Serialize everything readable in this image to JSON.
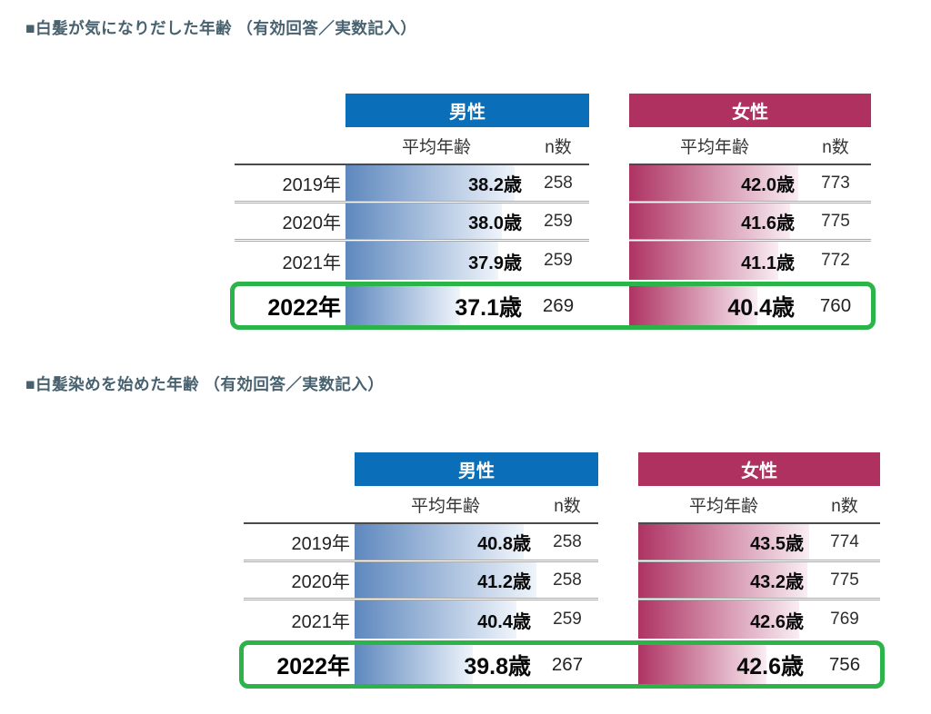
{
  "colors": {
    "heading_text": "#47616F",
    "male_header": "#0B6EB8",
    "female_header": "#AE3160",
    "male_bar_start": "#5E88BE",
    "male_bar_end": "#EFF4FB",
    "female_bar_start": "#AE3363",
    "female_bar_end": "#F9EDF3",
    "highlight_border": "#2CB34A",
    "rule": "#4a4a4a"
  },
  "sections": [
    {
      "heading": "■白髪が気になりだした年齢 （有効回答／実数記入）",
      "table": {
        "groups": [
          {
            "label": "男性"
          },
          {
            "label": "女性"
          }
        ],
        "avg_header": "平均年齢",
        "n_header": "n数",
        "rows": [
          {
            "year": "2019年",
            "highlight": false,
            "male": {
              "age": "38.2歳",
              "n": "258",
              "bar_pct": 93
            },
            "female": {
              "age": "42.0歳",
              "n": "773",
              "bar_pct": 99
            }
          },
          {
            "year": "2020年",
            "highlight": false,
            "male": {
              "age": "38.0歳",
              "n": "259",
              "bar_pct": 86
            },
            "female": {
              "age": "41.6歳",
              "n": "775",
              "bar_pct": 94
            }
          },
          {
            "year": "2021年",
            "highlight": false,
            "male": {
              "age": "37.9歳",
              "n": "259",
              "bar_pct": 84
            },
            "female": {
              "age": "41.1歳",
              "n": "772",
              "bar_pct": 87
            }
          },
          {
            "year": "2022年",
            "highlight": true,
            "male": {
              "age": "37.1歳",
              "n": "269",
              "bar_pct": 63
            },
            "female": {
              "age": "40.4歳",
              "n": "760",
              "bar_pct": 75
            }
          }
        ]
      }
    },
    {
      "heading": "■白髪染めを始めた年齢 （有効回答／実数記入）",
      "table": {
        "groups": [
          {
            "label": "男性"
          },
          {
            "label": "女性"
          }
        ],
        "avg_header": "平均年齢",
        "n_header": "n数",
        "rows": [
          {
            "year": "2019年",
            "highlight": false,
            "male": {
              "age": "40.8歳",
              "n": "258",
              "bar_pct": 93
            },
            "female": {
              "age": "43.5歳",
              "n": "774",
              "bar_pct": 100
            }
          },
          {
            "year": "2020年",
            "highlight": false,
            "male": {
              "age": "41.2歳",
              "n": "258",
              "bar_pct": 100
            },
            "female": {
              "age": "43.2歳",
              "n": "775",
              "bar_pct": 99
            }
          },
          {
            "year": "2021年",
            "highlight": false,
            "male": {
              "age": "40.4歳",
              "n": "259",
              "bar_pct": 89
            },
            "female": {
              "age": "42.6歳",
              "n": "769",
              "bar_pct": 94
            }
          },
          {
            "year": "2022年",
            "highlight": true,
            "male": {
              "age": "39.8歳",
              "n": "267",
              "bar_pct": 65
            },
            "female": {
              "age": "42.6歳",
              "n": "756",
              "bar_pct": 75
            }
          }
        ]
      }
    }
  ],
  "chart_data": [
    {
      "type": "table",
      "title": "白髪が気になりだした年齢（有効回答／実数記入）",
      "categories": [
        "2019年",
        "2020年",
        "2021年",
        "2022年"
      ],
      "series": [
        {
          "name": "男性 平均年齢(歳)",
          "values": [
            38.2,
            38.0,
            37.9,
            37.1
          ]
        },
        {
          "name": "男性 n数",
          "values": [
            258,
            259,
            259,
            269
          ]
        },
        {
          "name": "女性 平均年齢(歳)",
          "values": [
            42.0,
            41.6,
            41.1,
            40.4
          ]
        },
        {
          "name": "女性 n数",
          "values": [
            773,
            775,
            772,
            760
          ]
        }
      ],
      "highlighted_row": "2022年",
      "legend_position": "top",
      "notes": "平均年齢セルは値に比例したグラデーションのデータバー付き（男性=青、女性=臙脂）"
    },
    {
      "type": "table",
      "title": "白髪染めを始めた年齢（有効回答／実数記入）",
      "categories": [
        "2019年",
        "2020年",
        "2021年",
        "2022年"
      ],
      "series": [
        {
          "name": "男性 平均年齢(歳)",
          "values": [
            40.8,
            41.2,
            40.4,
            39.8
          ]
        },
        {
          "name": "男性 n数",
          "values": [
            258,
            258,
            259,
            267
          ]
        },
        {
          "name": "女性 平均年齢(歳)",
          "values": [
            43.5,
            43.2,
            42.6,
            42.6
          ]
        },
        {
          "name": "女性 n数",
          "values": [
            774,
            775,
            769,
            756
          ]
        }
      ],
      "highlighted_row": "2022年",
      "legend_position": "top",
      "notes": "2022年の行は緑色の角丸枠で強調"
    }
  ]
}
